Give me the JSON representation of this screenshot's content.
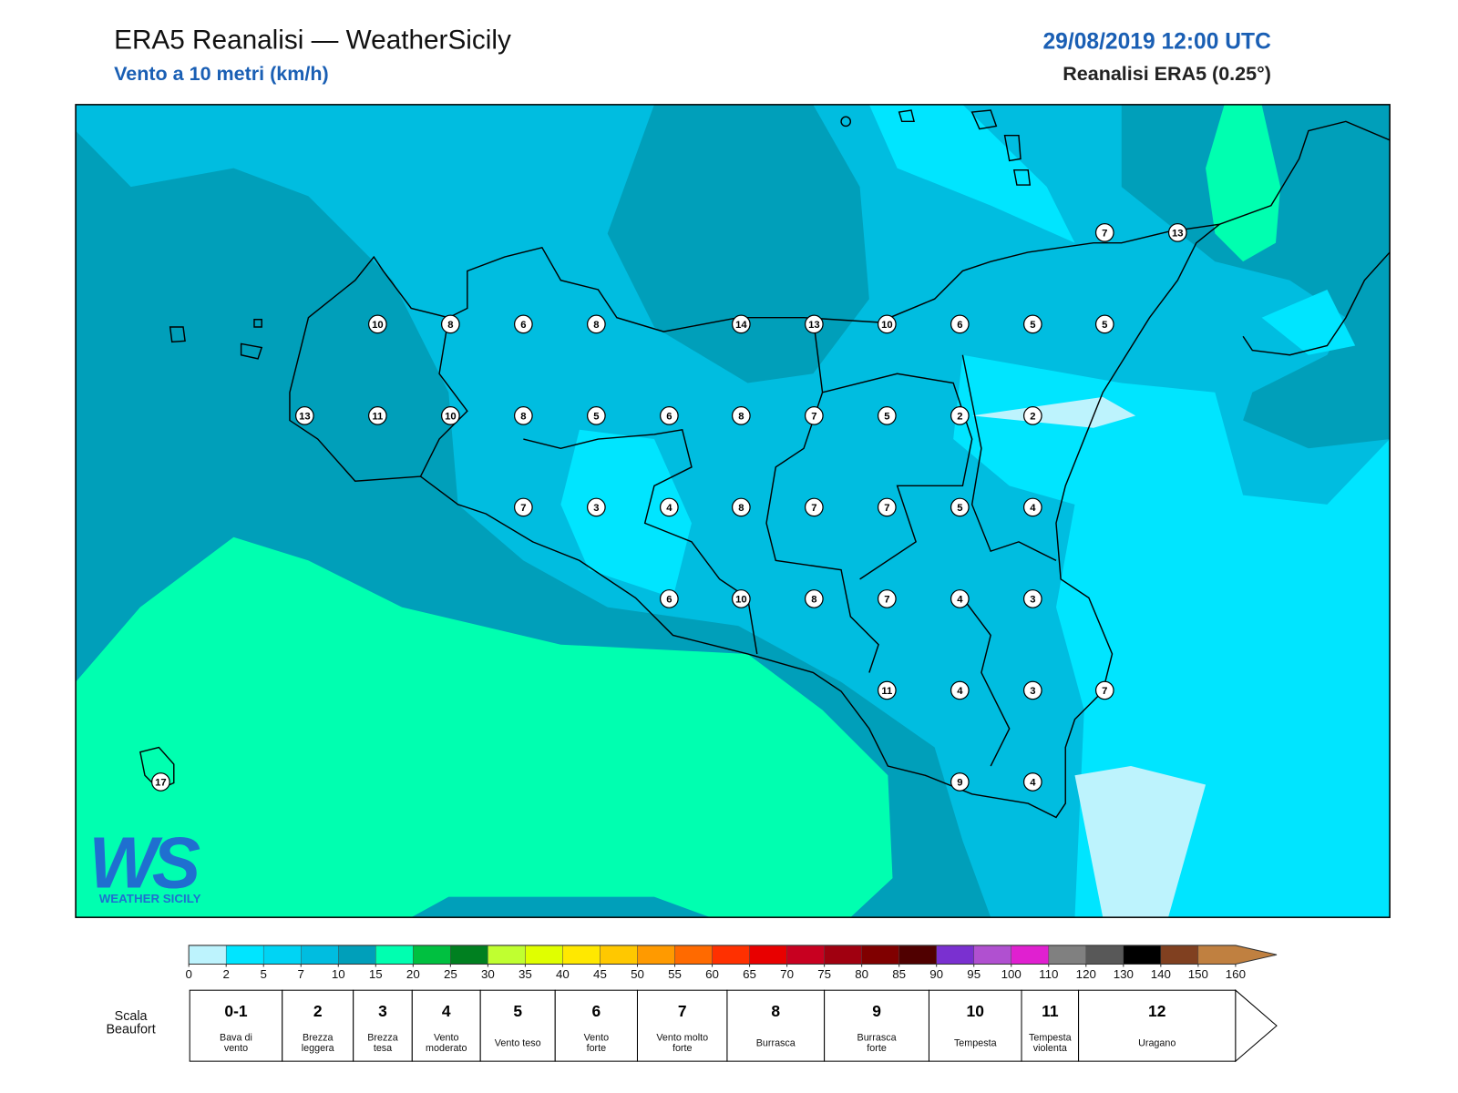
{
  "header": {
    "title": "ERA5 Reanalisi — WeatherSicily",
    "subtitle": "Vento a 10 metri (km/h)",
    "date": "29/08/2019 12:00 UTC",
    "source": "Reanalisi ERA5 (0.25°)"
  },
  "stations": [
    7,
    13,
    10,
    8,
    6,
    8,
    14,
    13,
    10,
    6,
    5,
    5,
    13,
    11,
    10,
    8,
    5,
    6,
    8,
    7,
    5,
    2,
    2,
    7,
    3,
    4,
    8,
    7,
    7,
    5,
    4,
    6,
    10,
    8,
    7,
    4,
    3,
    11,
    4,
    3,
    7,
    9,
    4,
    17
  ],
  "logo": {
    "mark": "WS",
    "text": "WEATHER SICILY"
  },
  "legend": {
    "ticks": [
      0,
      2,
      5,
      7,
      10,
      15,
      20,
      25,
      30,
      35,
      40,
      45,
      50,
      55,
      60,
      65,
      70,
      75,
      80,
      85,
      90,
      95,
      100,
      110,
      120,
      130,
      140,
      150,
      160
    ],
    "colors": [
      "#bdf3fd",
      "#00e5ff",
      "#00d4f4",
      "#00bde0",
      "#009fba",
      "#00ffb0",
      "#00c040",
      "#008020",
      "#c0ff30",
      "#e0ff00",
      "#ffe800",
      "#ffc800",
      "#ff9a00",
      "#ff6a00",
      "#ff3000",
      "#e80000",
      "#c80020",
      "#a00010",
      "#800000",
      "#500000",
      "#7a30d0",
      "#b050d0",
      "#e020d0",
      "#808080",
      "#585858",
      "#000000",
      "#804020",
      "#c08040"
    ]
  },
  "beaufort": {
    "title": [
      "Scala",
      "Beaufort"
    ],
    "levels": [
      {
        "force": "0-1",
        "desc": [
          "Bava di",
          "vento"
        ]
      },
      {
        "force": 2,
        "desc": [
          "Brezza",
          "leggera"
        ]
      },
      {
        "force": 3,
        "desc": [
          "Brezza",
          "tesa"
        ]
      },
      {
        "force": 4,
        "desc": [
          "Vento",
          "moderato"
        ]
      },
      {
        "force": 5,
        "desc": [
          "Vento teso"
        ]
      },
      {
        "force": 6,
        "desc": [
          "Vento",
          "forte"
        ]
      },
      {
        "force": 7,
        "desc": [
          "Vento molto",
          "forte"
        ]
      },
      {
        "force": 8,
        "desc": [
          "Burrasca"
        ]
      },
      {
        "force": 9,
        "desc": [
          "Burrasca",
          "forte"
        ]
      },
      {
        "force": 10,
        "desc": [
          "Tempesta"
        ]
      },
      {
        "force": 11,
        "desc": [
          "Tempesta",
          "violenta"
        ]
      },
      {
        "force": 12,
        "desc": [
          "Uragano"
        ]
      }
    ]
  }
}
